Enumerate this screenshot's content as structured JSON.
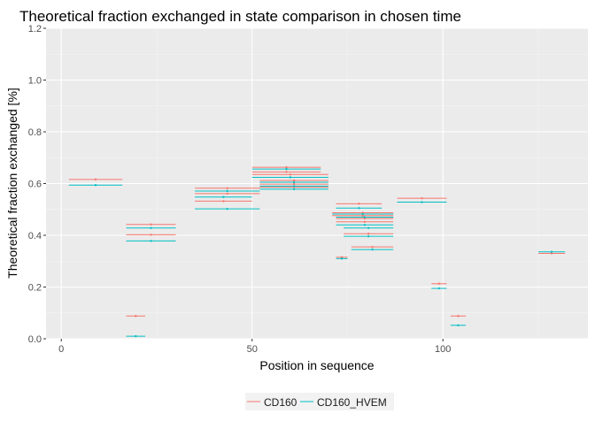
{
  "chart_data": {
    "type": "segment",
    "title": "Theoretical fraction exchanged in state comparison in chosen time",
    "xlabel": "Position in sequence",
    "ylabel": "Theoretical fraction exchanged [%]",
    "xlim": [
      -4,
      138
    ],
    "ylim": [
      0,
      1.2
    ],
    "x_ticks": [
      0,
      50,
      100
    ],
    "y_ticks": [
      0.0,
      0.2,
      0.4,
      0.6,
      0.8,
      1.0,
      1.2
    ],
    "y_tick_labels": [
      "0.0",
      "0.2",
      "0.4",
      "0.6",
      "0.8",
      "1.0",
      "1.2"
    ],
    "x_tick_labels": [
      "0",
      "50",
      "100"
    ],
    "grid": true,
    "legend_position": "bottom",
    "background": "#EBEBEB",
    "series": [
      {
        "name": "CD160",
        "color": "#F8766D",
        "segments": [
          {
            "start": 2,
            "end": 16,
            "value": 0.616
          },
          {
            "start": 17,
            "end": 22,
            "value": 0.088
          },
          {
            "start": 17,
            "end": 30,
            "value": 0.442
          },
          {
            "start": 17,
            "end": 30,
            "value": 0.402
          },
          {
            "start": 35,
            "end": 52,
            "value": 0.582
          },
          {
            "start": 35,
            "end": 52,
            "value": 0.561
          },
          {
            "start": 35,
            "end": 50,
            "value": 0.532
          },
          {
            "start": 50,
            "end": 68,
            "value": 0.663
          },
          {
            "start": 50,
            "end": 68,
            "value": 0.645
          },
          {
            "start": 50,
            "end": 70,
            "value": 0.635
          },
          {
            "start": 52,
            "end": 70,
            "value": 0.612
          },
          {
            "start": 52,
            "end": 70,
            "value": 0.598
          },
          {
            "start": 52,
            "end": 70,
            "value": 0.586
          },
          {
            "start": 72,
            "end": 84,
            "value": 0.522
          },
          {
            "start": 71,
            "end": 87,
            "value": 0.487
          },
          {
            "start": 71,
            "end": 87,
            "value": 0.476
          },
          {
            "start": 72,
            "end": 87,
            "value": 0.465
          },
          {
            "start": 72,
            "end": 87,
            "value": 0.452
          },
          {
            "start": 74,
            "end": 87,
            "value": 0.406
          },
          {
            "start": 72,
            "end": 75,
            "value": 0.315
          },
          {
            "start": 76,
            "end": 87,
            "value": 0.355
          },
          {
            "start": 88,
            "end": 101,
            "value": 0.543
          },
          {
            "start": 97,
            "end": 101,
            "value": 0.213
          },
          {
            "start": 102,
            "end": 106,
            "value": 0.088
          },
          {
            "start": 125,
            "end": 132,
            "value": 0.33
          }
        ]
      },
      {
        "name": "CD160_HVEM",
        "color": "#00BFC4",
        "segments": [
          {
            "start": 2,
            "end": 16,
            "value": 0.594
          },
          {
            "start": 17,
            "end": 22,
            "value": 0.01
          },
          {
            "start": 17,
            "end": 30,
            "value": 0.428
          },
          {
            "start": 17,
            "end": 30,
            "value": 0.378
          },
          {
            "start": 35,
            "end": 52,
            "value": 0.571
          },
          {
            "start": 35,
            "end": 50,
            "value": 0.548
          },
          {
            "start": 35,
            "end": 52,
            "value": 0.502
          },
          {
            "start": 50,
            "end": 68,
            "value": 0.656
          },
          {
            "start": 50,
            "end": 70,
            "value": 0.624
          },
          {
            "start": 52,
            "end": 70,
            "value": 0.605
          },
          {
            "start": 52,
            "end": 70,
            "value": 0.59
          },
          {
            "start": 52,
            "end": 70,
            "value": 0.578
          },
          {
            "start": 72,
            "end": 84,
            "value": 0.505
          },
          {
            "start": 71,
            "end": 87,
            "value": 0.482
          },
          {
            "start": 72,
            "end": 87,
            "value": 0.47
          },
          {
            "start": 72,
            "end": 87,
            "value": 0.44
          },
          {
            "start": 74,
            "end": 87,
            "value": 0.428
          },
          {
            "start": 74,
            "end": 87,
            "value": 0.396
          },
          {
            "start": 72,
            "end": 75,
            "value": 0.31
          },
          {
            "start": 76,
            "end": 87,
            "value": 0.345
          },
          {
            "start": 88,
            "end": 101,
            "value": 0.528
          },
          {
            "start": 97,
            "end": 101,
            "value": 0.195
          },
          {
            "start": 102,
            "end": 106,
            "value": 0.052
          },
          {
            "start": 125,
            "end": 132,
            "value": 0.336
          }
        ]
      }
    ]
  }
}
